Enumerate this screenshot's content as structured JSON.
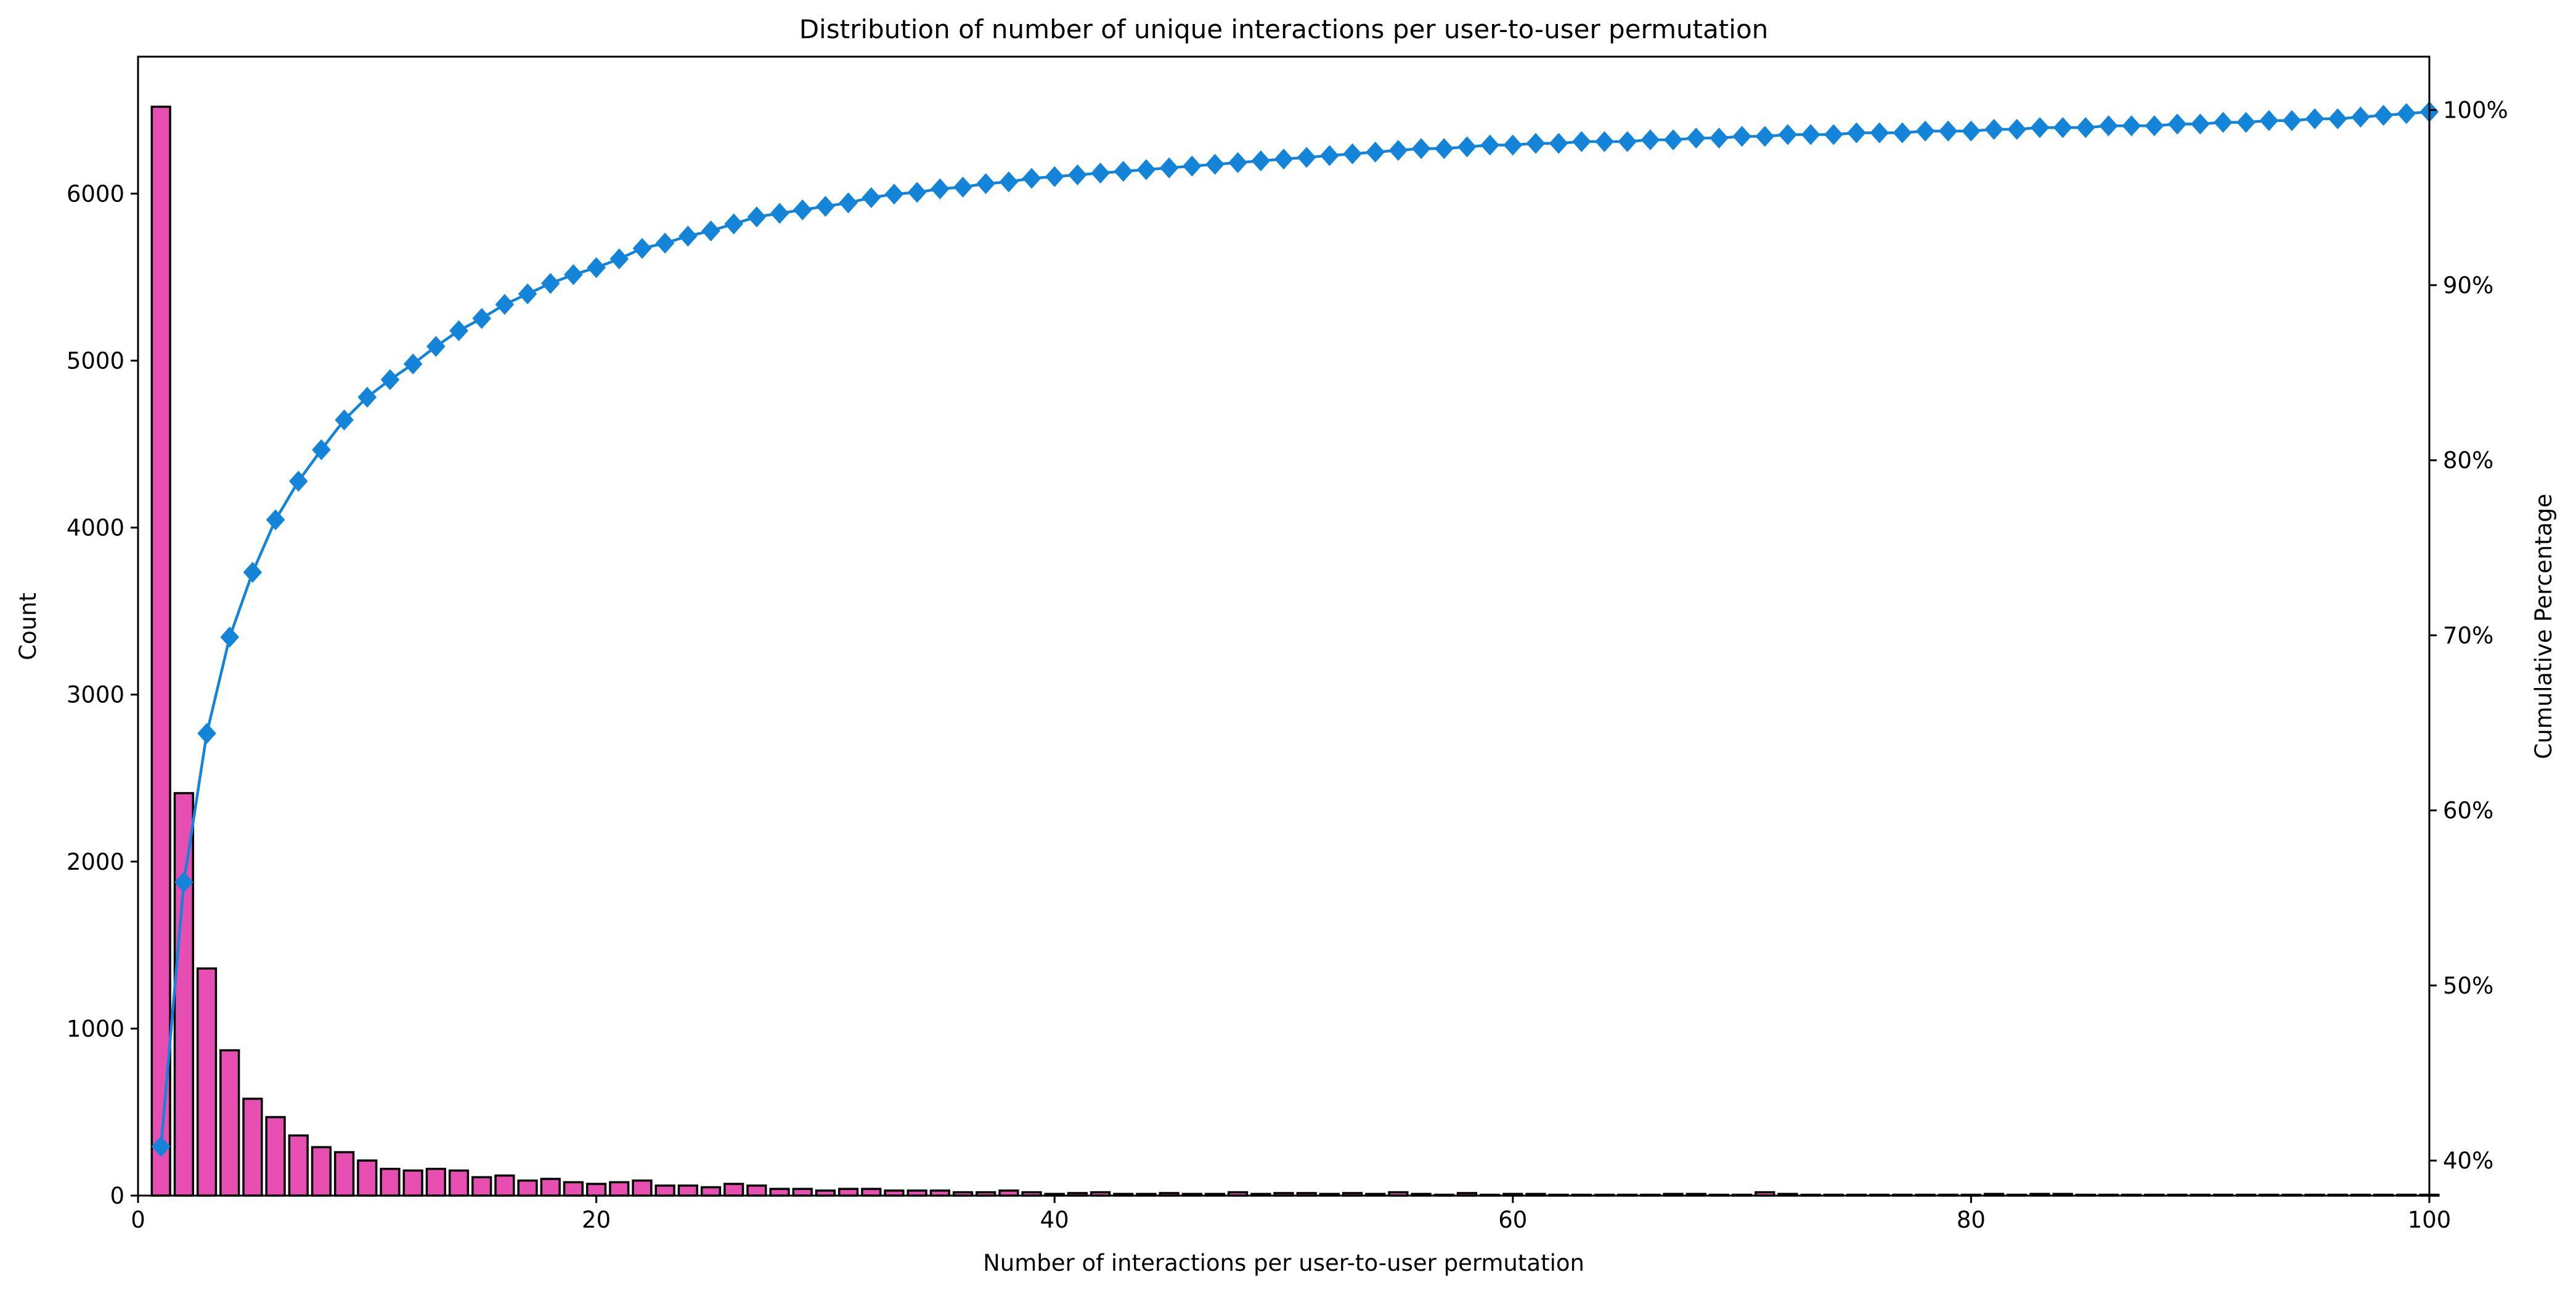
{
  "chart_data": {
    "type": "bar",
    "title": "Distribution of number of unique interactions per user-to-user permutation",
    "xlabel": "Number of interactions per user-to-user permutation",
    "ylabel": "Count",
    "y2label": "Cumulative Percentage",
    "xlim": [
      0,
      100
    ],
    "ylim": [
      0,
      6820
    ],
    "y2lim": [
      0.38,
      1.0305
    ],
    "x_ticks": [
      0,
      20,
      40,
      60,
      80,
      100
    ],
    "y_ticks": [
      0,
      1000,
      2000,
      3000,
      4000,
      5000,
      6000
    ],
    "y2_ticks": [
      0.4,
      0.5,
      0.6,
      0.7,
      0.8,
      0.9,
      1.0
    ],
    "grid": false,
    "colors": {
      "bars": "#e64fb1",
      "bar_edge": "#000000",
      "cumulative": "#1384d8"
    },
    "series": [
      {
        "name": "Count",
        "type": "bar",
        "x": [
          1,
          2,
          3,
          4,
          5,
          6,
          7,
          8,
          9,
          10,
          11,
          12,
          13,
          14,
          15,
          16,
          17,
          18,
          19,
          20,
          21,
          22,
          23,
          24,
          25,
          26,
          27,
          28,
          29,
          30,
          31,
          32,
          33,
          34,
          35,
          36,
          37,
          38,
          39,
          40,
          41,
          42,
          43,
          44,
          45,
          46,
          47,
          48,
          49,
          50,
          51,
          52,
          53,
          54,
          55,
          56,
          57,
          58,
          59,
          60,
          61,
          62,
          63,
          64,
          65,
          66,
          67,
          68,
          69,
          70,
          71,
          72,
          73,
          74,
          75,
          76,
          77,
          78,
          79,
          80,
          81,
          82,
          83,
          84,
          85,
          86,
          87,
          88,
          89,
          90,
          91,
          92,
          93,
          94,
          95,
          96,
          97,
          98,
          99,
          100
        ],
        "values": [
          6520,
          2410,
          1360,
          870,
          580,
          470,
          360,
          290,
          260,
          210,
          160,
          150,
          160,
          150,
          110,
          120,
          90,
          100,
          80,
          70,
          80,
          90,
          60,
          60,
          50,
          70,
          60,
          40,
          40,
          30,
          40,
          40,
          30,
          30,
          30,
          20,
          20,
          30,
          20,
          10,
          15,
          20,
          10,
          10,
          15,
          10,
          10,
          20,
          10,
          15,
          15,
          10,
          15,
          10,
          20,
          10,
          5,
          15,
          5,
          10,
          10,
          5,
          5,
          5,
          5,
          5,
          10,
          10,
          5,
          5,
          20,
          10,
          5,
          5,
          5,
          5,
          5,
          5,
          5,
          5,
          10,
          5,
          10,
          10,
          5,
          5,
          5,
          5,
          5,
          5,
          5,
          5,
          5,
          5,
          5,
          5,
          5,
          5,
          5,
          5
        ]
      },
      {
        "name": "Cumulative Percentage",
        "type": "line",
        "marker": "diamond",
        "x": [
          1,
          2,
          3,
          4,
          5,
          6,
          7,
          8,
          9,
          10,
          11,
          12,
          13,
          14,
          15,
          16,
          17,
          18,
          19,
          20,
          21,
          22,
          23,
          24,
          25,
          26,
          27,
          28,
          29,
          30,
          31,
          32,
          33,
          34,
          35,
          36,
          37,
          38,
          39,
          40,
          41,
          42,
          43,
          44,
          45,
          46,
          47,
          48,
          49,
          50,
          51,
          52,
          53,
          54,
          55,
          56,
          57,
          58,
          59,
          60,
          61,
          62,
          63,
          64,
          65,
          66,
          67,
          68,
          69,
          70,
          71,
          72,
          73,
          74,
          75,
          76,
          77,
          78,
          79,
          80,
          81,
          82,
          83,
          84,
          85,
          86,
          87,
          88,
          89,
          90,
          91,
          92,
          93,
          94,
          95,
          96,
          97,
          98,
          99,
          100
        ],
        "values": [
          0.408,
          0.559,
          0.644,
          0.699,
          0.736,
          0.766,
          0.788,
          0.806,
          0.823,
          0.836,
          0.846,
          0.855,
          0.865,
          0.874,
          0.881,
          0.889,
          0.895,
          0.901,
          0.906,
          0.91,
          0.915,
          0.921,
          0.924,
          0.928,
          0.931,
          0.935,
          0.939,
          0.941,
          0.943,
          0.945,
          0.947,
          0.95,
          0.952,
          0.953,
          0.955,
          0.956,
          0.958,
          0.959,
          0.961,
          0.962,
          0.963,
          0.964,
          0.965,
          0.966,
          0.967,
          0.968,
          0.969,
          0.97,
          0.971,
          0.972,
          0.973,
          0.974,
          0.975,
          0.976,
          0.977,
          0.978,
          0.978,
          0.979,
          0.98,
          0.98,
          0.981,
          0.981,
          0.982,
          0.982,
          0.982,
          0.983,
          0.983,
          0.984,
          0.984,
          0.985,
          0.985,
          0.986,
          0.986,
          0.986,
          0.987,
          0.987,
          0.987,
          0.988,
          0.988,
          0.988,
          0.989,
          0.989,
          0.99,
          0.99,
          0.99,
          0.991,
          0.991,
          0.991,
          0.992,
          0.992,
          0.993,
          0.993,
          0.994,
          0.994,
          0.995,
          0.995,
          0.996,
          0.997,
          0.998,
          0.999
        ]
      }
    ]
  }
}
